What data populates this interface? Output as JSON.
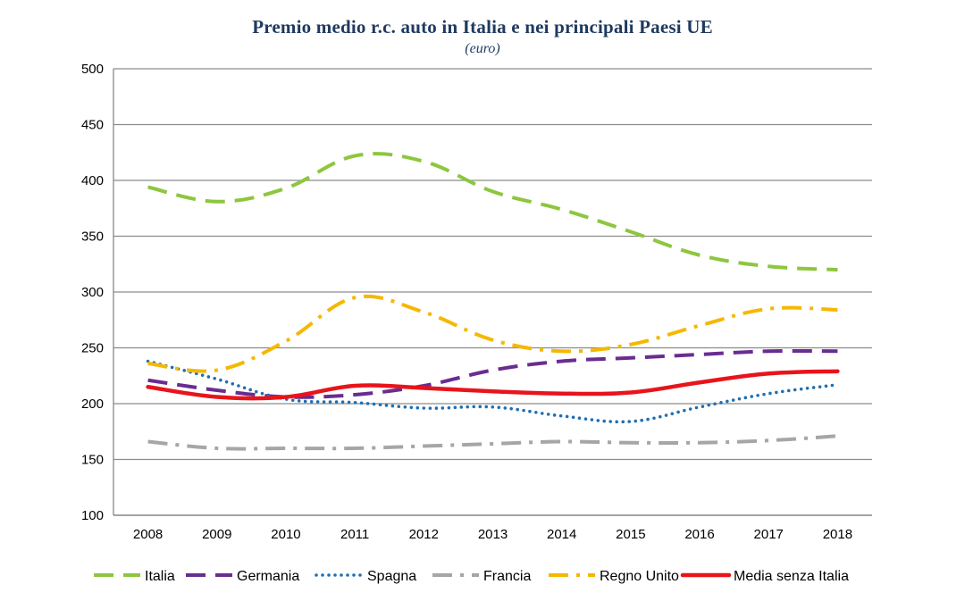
{
  "chart_data": {
    "type": "line",
    "title": "Premio medio r.c. auto in Italia e nei principali Paesi UE",
    "subtitle": "(euro)",
    "xlabel": "",
    "ylabel": "",
    "ylim": [
      100,
      500
    ],
    "yticks": [
      100,
      150,
      200,
      250,
      300,
      350,
      400,
      450,
      500
    ],
    "grid": true,
    "legend_position": "bottom",
    "categories": [
      "2008",
      "2009",
      "2010",
      "2011",
      "2012",
      "2013",
      "2014",
      "2015",
      "2016",
      "2017",
      "2018"
    ],
    "series": [
      {
        "name": "Italia",
        "color": "#8dc63f",
        "dash": "dash",
        "values": [
          394,
          381,
          393,
          422,
          417,
          390,
          374,
          354,
          333,
          323,
          320
        ]
      },
      {
        "name": "Germania",
        "color": "#6a2c91",
        "dash": "dash",
        "values": [
          221,
          212,
          206,
          208,
          216,
          230,
          238,
          241,
          244,
          247,
          247
        ]
      },
      {
        "name": "Spagna",
        "color": "#1f6fb2",
        "dash": "dot",
        "values": [
          238,
          222,
          204,
          201,
          196,
          197,
          189,
          184,
          197,
          209,
          217
        ]
      },
      {
        "name": "Francia",
        "color": "#a6a6a6",
        "dash": "dashdot",
        "values": [
          166,
          160,
          160,
          160,
          162,
          164,
          166,
          165,
          165,
          167,
          171
        ]
      },
      {
        "name": "Regno Unito",
        "color": "#f5b800",
        "dash": "dashdot",
        "values": [
          236,
          230,
          256,
          295,
          282,
          257,
          247,
          253,
          270,
          285,
          284
        ]
      },
      {
        "name": "Media senza Italia",
        "color": "#e8141b",
        "dash": "solid",
        "values": [
          215,
          206,
          206,
          216,
          214,
          211,
          209,
          210,
          219,
          227,
          229
        ]
      }
    ]
  }
}
